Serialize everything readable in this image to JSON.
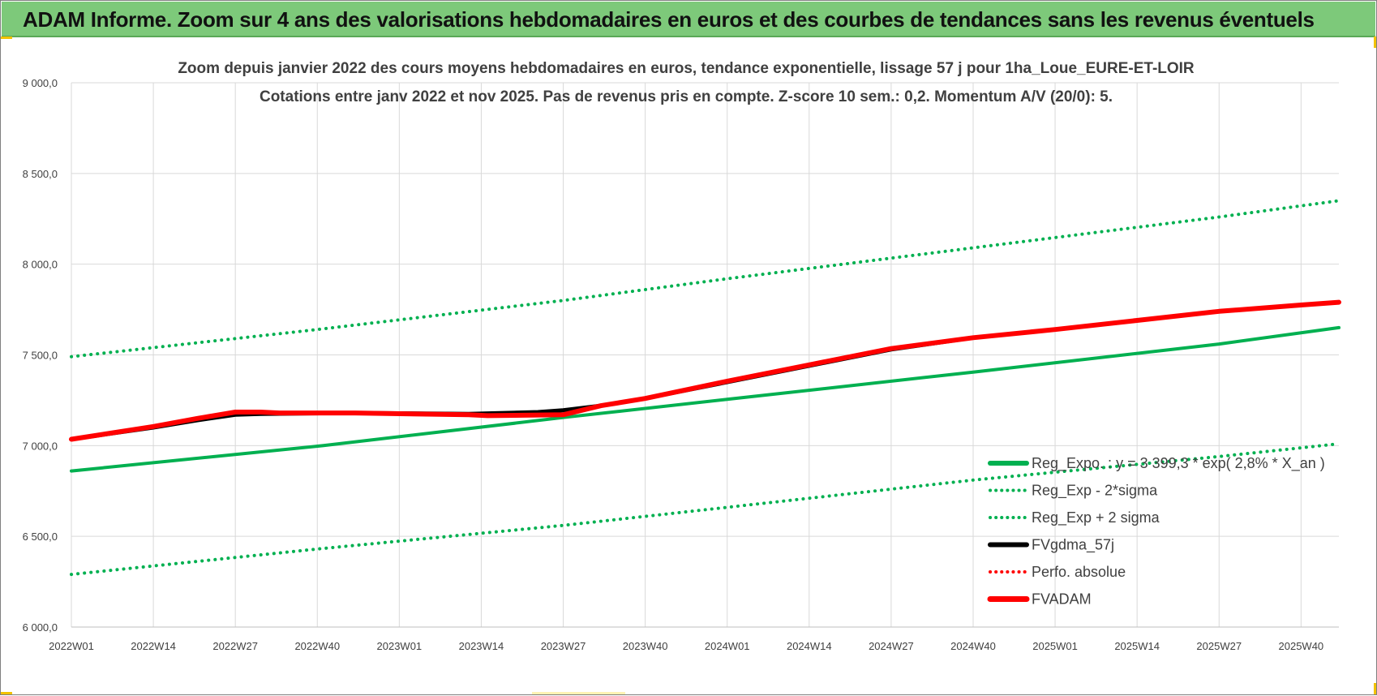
{
  "banner": {
    "title": "ADAM Informe. Zoom sur 4 ans des valorisations hebdomadaires en euros et des courbes de tendances sans les revenus éventuels"
  },
  "colors": {
    "banner_bg": "#7dc97a",
    "trend_green": "#00b050",
    "band_green": "#00b050",
    "gdma_black": "#000000",
    "fvadam_red": "#ff0000",
    "grid": "#d9d9d9"
  },
  "chart_data": {
    "type": "line",
    "title_lines": [
      "Zoom depuis janvier 2022 des cours moyens hebdomadaires en euros, tendance exponentielle, lissage 57 j pour 1ha_Loue_EURE-ET-LOIR",
      "Cotations entre janv 2022 et nov 2025. Pas de revenus pris en compte. Z-score 10 sem.: 0,2. Momentum A/V (20/0): 5."
    ],
    "xlabel": "",
    "ylabel": "",
    "ylim": [
      6000,
      9000
    ],
    "ytick_values": [
      6000,
      6500,
      7000,
      7500,
      8000,
      8500,
      9000
    ],
    "ytick_labels": [
      "6 000,0",
      "6 500,0",
      "7 000,0",
      "7 500,0",
      "8 000,0",
      "8 500,0",
      "9 000,0"
    ],
    "x_index_range": [
      0,
      201
    ],
    "xtick_index": [
      0,
      13,
      26,
      39,
      52,
      65,
      78,
      91,
      104,
      117,
      130,
      143,
      156,
      169,
      182,
      195
    ],
    "xtick_labels": [
      "2022W01",
      "2022W14",
      "2022W27",
      "2022W40",
      "2023W01",
      "2023W14",
      "2023W27",
      "2023W40",
      "2024W01",
      "2024W14",
      "2024W27",
      "2024W40",
      "2025W01",
      "2025W14",
      "2025W27",
      "2025W40"
    ],
    "grid": true,
    "legend_position": "bottom-right",
    "series": [
      {
        "name": "Reg_Expo. : y = 3 399,3 * exp( 2,8% *  X_an )",
        "style": "solid",
        "color": "#00b050",
        "points": [
          [
            0,
            6860
          ],
          [
            40,
            7000
          ],
          [
            78,
            7155
          ],
          [
            104,
            7255
          ],
          [
            143,
            7405
          ],
          [
            182,
            7560
          ],
          [
            201,
            7650
          ]
        ]
      },
      {
        "name": "Reg_Exp - 2*sigma",
        "style": "dotted",
        "color": "#00b050",
        "points": [
          [
            0,
            6290
          ],
          [
            39,
            6430
          ],
          [
            78,
            6560
          ],
          [
            104,
            6660
          ],
          [
            143,
            6810
          ],
          [
            182,
            6940
          ],
          [
            201,
            7010
          ]
        ]
      },
      {
        "name": "Reg_Exp + 2 sigma",
        "style": "dotted",
        "color": "#00b050",
        "points": [
          [
            0,
            7490
          ],
          [
            39,
            7640
          ],
          [
            78,
            7800
          ],
          [
            104,
            7920
          ],
          [
            143,
            8090
          ],
          [
            182,
            8260
          ],
          [
            201,
            8350
          ]
        ]
      },
      {
        "name": "FVgdma_57j",
        "style": "solid",
        "color": "#000000",
        "points": [
          [
            0,
            7035
          ],
          [
            13,
            7100
          ],
          [
            20,
            7140
          ],
          [
            26,
            7170
          ],
          [
            30,
            7175
          ],
          [
            45,
            7180
          ],
          [
            63,
            7175
          ],
          [
            74,
            7185
          ],
          [
            78,
            7195
          ],
          [
            84,
            7220
          ],
          [
            91,
            7260
          ],
          [
            104,
            7350
          ],
          [
            117,
            7440
          ],
          [
            130,
            7530
          ],
          [
            143,
            7595
          ],
          [
            156,
            7640
          ],
          [
            169,
            7690
          ],
          [
            182,
            7740
          ],
          [
            195,
            7775
          ],
          [
            201,
            7790
          ]
        ]
      },
      {
        "name": "Perfo. absolue",
        "style": "dotted",
        "color": "#ff0000",
        "points": []
      },
      {
        "name": "FVADAM",
        "style": "solid",
        "color": "#ff0000",
        "points": [
          [
            0,
            7035
          ],
          [
            13,
            7105
          ],
          [
            20,
            7150
          ],
          [
            26,
            7185
          ],
          [
            30,
            7185
          ],
          [
            33,
            7180
          ],
          [
            45,
            7180
          ],
          [
            63,
            7170
          ],
          [
            66,
            7165
          ],
          [
            78,
            7170
          ],
          [
            84,
            7220
          ],
          [
            91,
            7260
          ],
          [
            104,
            7355
          ],
          [
            117,
            7445
          ],
          [
            130,
            7535
          ],
          [
            143,
            7595
          ],
          [
            156,
            7640
          ],
          [
            169,
            7690
          ],
          [
            182,
            7740
          ],
          [
            195,
            7775
          ],
          [
            201,
            7790
          ]
        ]
      }
    ]
  }
}
